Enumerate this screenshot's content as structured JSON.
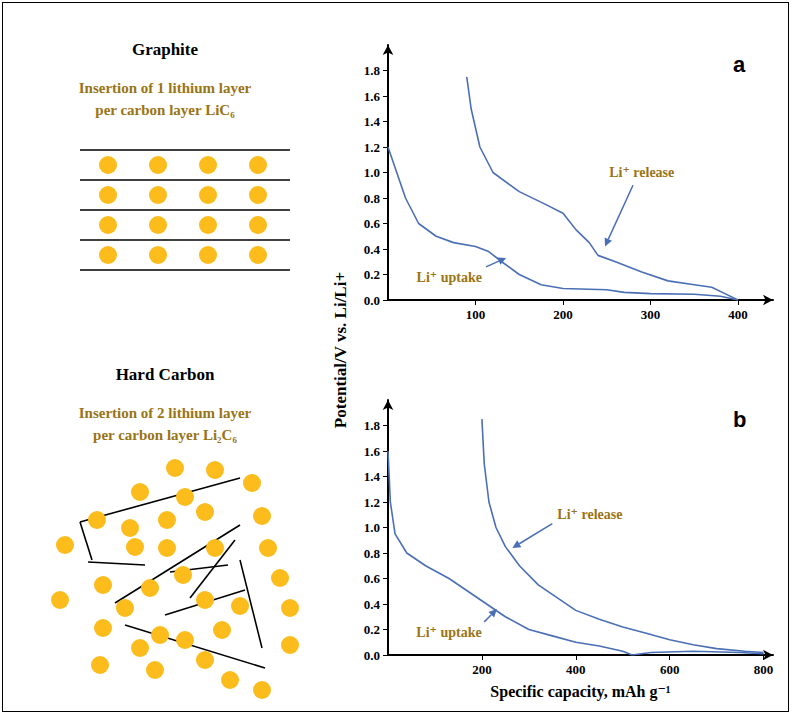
{
  "diagram": {
    "panels": [
      {
        "title": "Graphite",
        "caption": "Insertion of 1 lithium layer per carbon layer LiC₆"
      },
      {
        "title": "Hard Carbon",
        "caption": "Insertion of 2 lithium layer per carbon layer Li₂C₆"
      }
    ]
  },
  "chart_data": [
    {
      "type": "line",
      "title": "a",
      "ylabel": "Potential/V vs. Li/Li+",
      "xlim": [
        0,
        440
      ],
      "xticks": [
        100,
        200,
        300,
        400
      ],
      "ylim": [
        0,
        2
      ],
      "yticks": [
        {
          "value": 0,
          "label": "0.0"
        },
        0.2,
        0.4,
        0.6,
        0.8,
        {
          "value": 1,
          "label": "1.0"
        },
        1.2,
        1.4,
        1.6,
        1.8
      ],
      "grid": false,
      "series": [
        {
          "name": "Li⁺ uptake",
          "color": "#4a6fb5",
          "x": [
            0,
            10,
            20,
            35,
            55,
            75,
            100,
            115,
            130,
            150,
            175,
            200,
            250,
            270,
            300,
            350,
            380,
            400
          ],
          "values": [
            1.2,
            1.0,
            0.8,
            0.6,
            0.5,
            0.45,
            0.42,
            0.38,
            0.3,
            0.2,
            0.12,
            0.09,
            0.08,
            0.06,
            0.05,
            0.045,
            0.03,
            0.0
          ]
        },
        {
          "name": "Li⁺ release",
          "color": "#4a6fb5",
          "x": [
            90,
            95,
            105,
            120,
            150,
            180,
            200,
            215,
            230,
            240,
            260,
            290,
            320,
            350,
            370,
            385,
            400
          ],
          "values": [
            1.75,
            1.5,
            1.2,
            1.0,
            0.85,
            0.75,
            0.68,
            0.55,
            0.45,
            0.35,
            0.3,
            0.22,
            0.15,
            0.12,
            0.1,
            0.05,
            0.0
          ]
        }
      ]
    },
    {
      "type": "line",
      "title": "b",
      "xlabel": "Specific capacity, mAh g⁻¹",
      "xlim": [
        0,
        820
      ],
      "xticks": [
        200,
        400,
        600,
        800
      ],
      "ylim": [
        0,
        2
      ],
      "yticks": [
        {
          "value": 0,
          "label": "0.0"
        },
        0.2,
        0.4,
        0.6,
        0.8,
        {
          "value": 1,
          "label": "1.0"
        },
        1.2,
        1.4,
        1.6,
        1.8
      ],
      "grid": false,
      "series": [
        {
          "name": "Li⁺ uptake",
          "color": "#4a6fb5",
          "x": [
            0,
            5,
            15,
            40,
            80,
            130,
            170,
            210,
            250,
            300,
            350,
            400,
            450,
            500,
            520,
            560,
            650,
            750,
            800
          ],
          "values": [
            1.6,
            1.2,
            0.95,
            0.8,
            0.7,
            0.6,
            0.5,
            0.4,
            0.3,
            0.2,
            0.15,
            0.1,
            0.07,
            0.03,
            0.0,
            0.02,
            0.03,
            0.02,
            0.01
          ]
        },
        {
          "name": "Li⁺ release",
          "color": "#4a6fb5",
          "x": [
            200,
            205,
            215,
            230,
            250,
            280,
            320,
            360,
            400,
            450,
            500,
            550,
            600,
            650,
            700,
            760,
            800
          ],
          "values": [
            1.85,
            1.5,
            1.2,
            1.0,
            0.85,
            0.7,
            0.55,
            0.45,
            0.35,
            0.28,
            0.22,
            0.17,
            0.12,
            0.08,
            0.05,
            0.03,
            0.02
          ]
        }
      ]
    }
  ]
}
